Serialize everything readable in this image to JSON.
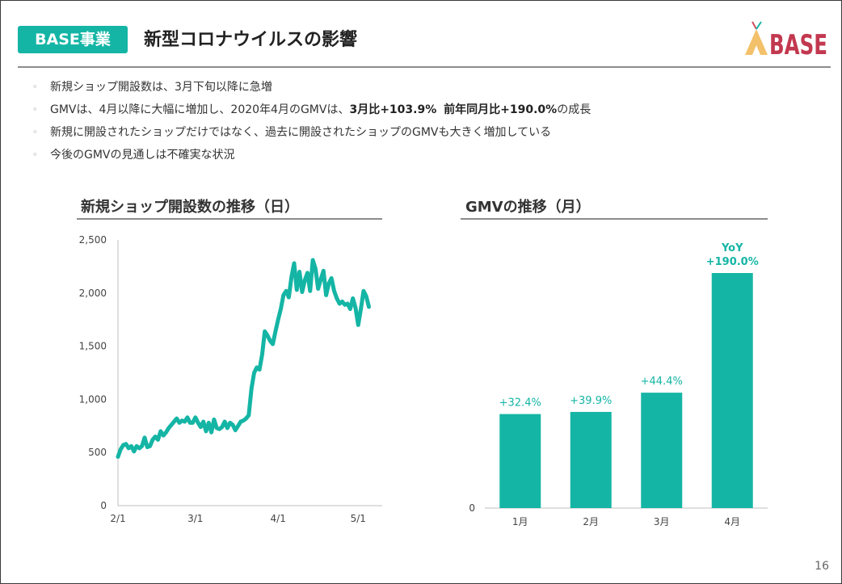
{
  "header": {
    "badge": "BASE事業",
    "title": "新型コロナウイルスの影響",
    "logo_text": "BASE"
  },
  "bullets": [
    {
      "parts": [
        {
          "text": "新規ショップ開設数は、3月下旬以降に急増",
          "bold": false
        }
      ]
    },
    {
      "parts": [
        {
          "text": "GMVは、4月以降に大幅に増加し、2020年4月のGMVは、",
          "bold": false
        },
        {
          "text": "3月比+103.9%",
          "bold": true
        },
        {
          "text": "  ",
          "bold": false
        },
        {
          "text": "前年同月比+190.0%",
          "bold": true
        },
        {
          "text": "の成長",
          "bold": false
        }
      ]
    },
    {
      "parts": [
        {
          "text": "新規に開設されたショップだけではなく、過去に開設されたショップのGMVも大きく増加している",
          "bold": false
        }
      ]
    },
    {
      "parts": [
        {
          "text": "今後のGMVの見通しは不確実な状況",
          "bold": false
        }
      ]
    }
  ],
  "page_number": "16",
  "colors": {
    "accent": "#15b5a5"
  },
  "chart_data": [
    {
      "type": "line",
      "title": "新規ショップ開設数の推移（日）",
      "ylim": [
        0,
        2500
      ],
      "yticks": [
        0,
        500,
        1000,
        1500,
        2000,
        2500
      ],
      "ytick_labels": [
        "0",
        "500",
        "1,000",
        "1,500",
        "2,000",
        "2,500"
      ],
      "xlim": [
        0,
        99
      ],
      "xticks": [
        0,
        29,
        60,
        90
      ],
      "xtick_labels": [
        "2/1",
        "3/1",
        "4/1",
        "5/1"
      ],
      "series": [
        {
          "values": [
            460,
            530,
            570,
            580,
            540,
            560,
            510,
            560,
            540,
            560,
            640,
            550,
            560,
            620,
            650,
            620,
            700,
            660,
            690,
            730,
            760,
            790,
            820,
            780,
            800,
            790,
            830,
            780,
            780,
            830,
            780,
            740,
            790,
            700,
            780,
            690,
            810,
            730,
            720,
            740,
            790,
            730,
            780,
            760,
            710,
            750,
            790,
            800,
            820,
            850,
            1100,
            1250,
            1300,
            1280,
            1420,
            1640,
            1600,
            1550,
            1520,
            1640,
            1750,
            1850,
            1980,
            2020,
            1960,
            2150,
            2280,
            2030,
            2200,
            2010,
            2120,
            2190,
            2020,
            2310,
            2230,
            2040,
            2130,
            2210,
            1980,
            2090,
            2140,
            2020,
            1950,
            1900,
            1920,
            1890,
            1900,
            1850,
            1950,
            1860,
            1700,
            1850,
            2020,
            1970,
            1870
          ]
        }
      ]
    },
    {
      "type": "bar",
      "title": "GMVの推移（月）",
      "ylim": [
        0,
        2200
      ],
      "yticks": [
        0
      ],
      "ytick_labels": [
        "0"
      ],
      "categories": [
        "1月",
        "2月",
        "3月",
        "4月"
      ],
      "values": [
        880,
        900,
        1080,
        2200
      ],
      "labels": [
        "+32.4%",
        "+39.9%",
        "+44.4%",
        "YoY\n+190.0%"
      ]
    }
  ]
}
